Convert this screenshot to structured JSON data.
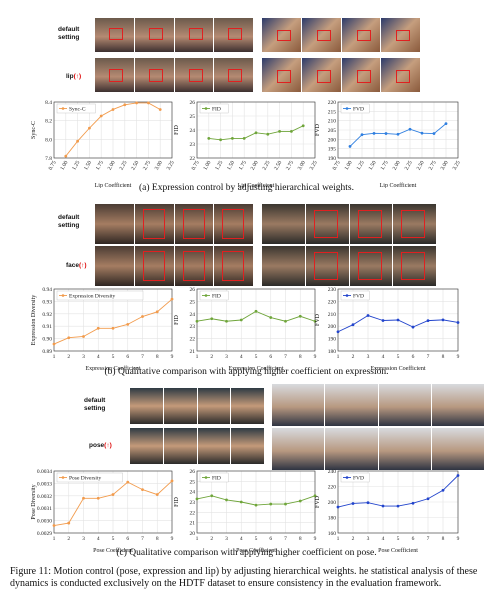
{
  "sections": [
    {
      "row_labels": {
        "default": "default setting",
        "boost_word": "lip",
        "boost_mark": "(↑)"
      },
      "caption": "(a) Expression control by adjusting hierarchical weights.",
      "charts": [
        {
          "type": "line",
          "series": [
            {
              "name": "Sync-C",
              "values": [
                7.82,
                7.98,
                8.12,
                8.25,
                8.32,
                8.37,
                8.39,
                8.39,
                8.32
              ]
            }
          ],
          "x": [
            "0.75",
            "1.00",
            "1.25",
            "1.50",
            "1.75",
            "2.00",
            "2.25",
            "2.50",
            "2.75",
            "3.00",
            "3.25"
          ],
          "x_values": [
            1.0,
            1.25,
            1.5,
            1.75,
            2.0,
            2.25,
            2.5,
            2.75,
            3.0
          ],
          "xlabel": "Lip Coefficient",
          "ylabel": "Sync-C",
          "ylim": [
            7.8,
            8.4
          ],
          "yticks": [
            "7.8",
            "8.0",
            "8.2",
            "8.4"
          ],
          "color": "#f29b4c",
          "legend": "top-left",
          "grid": true
        },
        {
          "type": "line",
          "series": [
            {
              "name": "FID",
              "values": [
                23.4,
                23.3,
                23.4,
                23.4,
                23.8,
                23.7,
                23.9,
                23.9,
                24.3
              ]
            }
          ],
          "x": [
            "0.75",
            "1.00",
            "1.25",
            "1.50",
            "1.75",
            "2.00",
            "2.25",
            "2.50",
            "2.75",
            "3.00",
            "3.25"
          ],
          "x_values": [
            1.0,
            1.25,
            1.5,
            1.75,
            2.0,
            2.25,
            2.5,
            2.75,
            3.0
          ],
          "xlabel": "Lip Coefficient",
          "ylabel": "FID",
          "ylim": [
            22,
            26
          ],
          "yticks": [
            "22",
            "23",
            "24",
            "25",
            "26"
          ],
          "color": "#6fa53a",
          "legend": "top-left",
          "grid": true
        },
        {
          "type": "line",
          "series": [
            {
              "name": "FVD",
              "values": [
                196.2,
                202.5,
                203.2,
                203.1,
                202.7,
                205.4,
                203.3,
                203.1,
                208.4
              ]
            }
          ],
          "x": [
            "0.75",
            "1.00",
            "1.25",
            "1.50",
            "1.75",
            "2.00",
            "2.25",
            "2.50",
            "2.75",
            "3.00",
            "3.25"
          ],
          "x_values": [
            1.0,
            1.25,
            1.5,
            1.75,
            2.0,
            2.25,
            2.5,
            2.75,
            3.0
          ],
          "xlabel": "Lip Coefficient",
          "ylabel": "FVD",
          "ylim": [
            190,
            220
          ],
          "yticks": [
            "190",
            "195",
            "200",
            "205",
            "210",
            "215",
            "220"
          ],
          "color": "#2f7fe0",
          "legend": "top-left",
          "grid": true
        }
      ]
    },
    {
      "row_labels": {
        "default": "default setting",
        "boost_word": "face",
        "boost_mark": "(↑)"
      },
      "caption": "(b) Qualitative comparison with applying higher coefficient on expression.",
      "charts": [
        {
          "type": "line",
          "series": [
            {
              "name": "Expression Diversity",
              "values": [
                0.8956,
                0.9007,
                0.9017,
                0.9083,
                0.9083,
                0.9115,
                0.9178,
                0.9216,
                0.9318
              ]
            }
          ],
          "x": [
            "1",
            "2",
            "3",
            "4",
            "5",
            "6",
            "7",
            "8",
            "9"
          ],
          "x_values": [
            1,
            2,
            3,
            4,
            5,
            6,
            7,
            8,
            9
          ],
          "xlabel": "Expression Coefficient",
          "ylabel": "Expression Diversity",
          "ylim": [
            0.89,
            0.94
          ],
          "yticks": [
            "0.89",
            "0.90",
            "0.91",
            "0.92",
            "0.93",
            "0.94"
          ],
          "color": "#f29b4c",
          "legend": "top-left",
          "grid": true
        },
        {
          "type": "line",
          "series": [
            {
              "name": "FID",
              "values": [
                23.4,
                23.6,
                23.4,
                23.5,
                24.2,
                23.7,
                23.4,
                23.8,
                23.4
              ]
            }
          ],
          "x": [
            "1",
            "2",
            "3",
            "4",
            "5",
            "6",
            "7",
            "8",
            "9"
          ],
          "x_values": [
            1,
            2,
            3,
            4,
            5,
            6,
            7,
            8,
            9
          ],
          "xlabel": "Expression Coefficient",
          "ylabel": "FID",
          "ylim": [
            21,
            26
          ],
          "yticks": [
            "21",
            "22",
            "23",
            "24",
            "25",
            "26"
          ],
          "color": "#6fa53a",
          "legend": "top-left",
          "grid": true
        },
        {
          "type": "line",
          "series": [
            {
              "name": "FVD",
              "values": [
                195.5,
                201.2,
                208.6,
                204.6,
                205.0,
                199.3,
                204.5,
                205.1,
                203.0
              ]
            }
          ],
          "x": [
            "1",
            "2",
            "3",
            "4",
            "5",
            "6",
            "7",
            "8",
            "9"
          ],
          "x_values": [
            1,
            2,
            3,
            4,
            5,
            6,
            7,
            8,
            9
          ],
          "xlabel": "Expression Coefficient",
          "ylabel": "FVD",
          "ylim": [
            180,
            230
          ],
          "yticks": [
            "180",
            "190",
            "200",
            "210",
            "220",
            "230"
          ],
          "color": "#2244cc",
          "legend": "top-left",
          "grid": true
        }
      ]
    },
    {
      "row_labels": {
        "default": "default setting",
        "boost_word": "pose",
        "boost_mark": "(↑)"
      },
      "caption": "(c) Qualitative comparison with applying higher coefficient on pose.",
      "charts": [
        {
          "type": "line",
          "series": [
            {
              "name": "Pose Diversity",
              "values": [
                0.00296,
                0.00298,
                0.00318,
                0.00318,
                0.00321,
                0.00331,
                0.00325,
                0.00321,
                0.00332
              ]
            }
          ],
          "x": [
            "1",
            "2",
            "3",
            "4",
            "5",
            "6",
            "7",
            "8",
            "9"
          ],
          "x_values": [
            1,
            2,
            3,
            4,
            5,
            6,
            7,
            8,
            9
          ],
          "xlabel": "Pose Coefficient",
          "ylabel": "Pose Diversity",
          "ylim": [
            0.0029,
            0.0034
          ],
          "yticks": [
            "0.0029",
            "0.0030",
            "0.0031",
            "0.0032",
            "0.0033",
            "0.0034"
          ],
          "color": "#f29b4c",
          "legend": "top-left",
          "grid": true
        },
        {
          "type": "line",
          "series": [
            {
              "name": "FID",
              "values": [
                23.3,
                23.6,
                23.2,
                23.0,
                22.7,
                22.8,
                22.8,
                23.1,
                23.6
              ]
            }
          ],
          "x": [
            "1",
            "2",
            "3",
            "4",
            "5",
            "6",
            "7",
            "8",
            "9"
          ],
          "x_values": [
            1,
            2,
            3,
            4,
            5,
            6,
            7,
            8,
            9
          ],
          "xlabel": "Pose Coefficient",
          "ylabel": "FID",
          "ylim": [
            20,
            26
          ],
          "yticks": [
            "20",
            "21",
            "22",
            "23",
            "24",
            "25",
            "26"
          ],
          "color": "#6fa53a",
          "legend": "top-left",
          "grid": true
        },
        {
          "type": "line",
          "series": [
            {
              "name": "FVD",
              "values": [
                193.5,
                198.1,
                199.1,
                194.8,
                194.7,
                198.4,
                204.2,
                215.1,
                234.2
              ]
            }
          ],
          "x": [
            "1",
            "2",
            "3",
            "4",
            "5",
            "6",
            "7",
            "8",
            "9"
          ],
          "x_values": [
            1,
            2,
            3,
            4,
            5,
            6,
            7,
            8,
            9
          ],
          "xlabel": "Pose Coefficient",
          "ylabel": "FVD",
          "ylim": [
            160,
            240
          ],
          "yticks": [
            "160",
            "180",
            "200",
            "220",
            "240"
          ],
          "color": "#2244cc",
          "legend": "top-left",
          "grid": true
        }
      ]
    }
  ],
  "figure_caption": "Figure 11: Motion control (pose, expression and lip) by adjusting hierarchical weights. he statistical analysis of these dynamics is conducted exclusively on the HDTF dataset to ensure consistency in the evaluation framework."
}
